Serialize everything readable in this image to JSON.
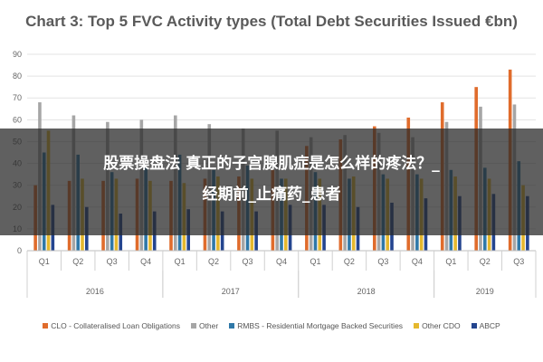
{
  "chart_data": {
    "type": "bar",
    "title": "Chart 3: Top 5 FVC Activity types (Total Debt Securities Issued €bn)",
    "ylim": [
      0,
      90
    ],
    "yticks": [
      0,
      10,
      20,
      30,
      40,
      50,
      60,
      70,
      80,
      90
    ],
    "grid": true,
    "legend_position": "bottom",
    "categories": [
      "Q1",
      "Q2",
      "Q3",
      "Q4",
      "Q1",
      "Q2",
      "Q3",
      "Q4",
      "Q1",
      "Q2",
      "Q3",
      "Q4",
      "Q1",
      "Q2",
      "Q3"
    ],
    "year_groups": [
      {
        "label": "2016",
        "count": 4
      },
      {
        "label": "2017",
        "count": 4
      },
      {
        "label": "2018",
        "count": 4
      },
      {
        "label": "2019",
        "count": 3
      }
    ],
    "series": [
      {
        "name": "CLO - Collateralised Loan Obligations",
        "color": "#e06c2c",
        "values": [
          30,
          32,
          32,
          33,
          32,
          33,
          34,
          37,
          48,
          51,
          57,
          61,
          68,
          75,
          83
        ]
      },
      {
        "name": "Other",
        "color": "#a6a6a6",
        "values": [
          68,
          62,
          59,
          60,
          62,
          58,
          56,
          55,
          52,
          53,
          54,
          52,
          59,
          66,
          67
        ]
      },
      {
        "name": "RMBS - Residential Mortgage Backed Securities",
        "color": "#2f78a8",
        "values": [
          45,
          44,
          36,
          38,
          44,
          37,
          39,
          33,
          36,
          33,
          35,
          35,
          37,
          38,
          41
        ]
      },
      {
        "name": "Other CDO",
        "color": "#e5b82e",
        "values": [
          55,
          33,
          33,
          32,
          31,
          34,
          33,
          33,
          33,
          34,
          33,
          33,
          34,
          33,
          30
        ]
      },
      {
        "name": "ABCP",
        "color": "#24458f",
        "values": [
          21,
          20,
          17,
          18,
          19,
          18,
          18,
          21,
          21,
          20,
          22,
          24,
          25,
          26,
          25
        ]
      }
    ]
  },
  "overlay": {
    "line1": "股票操盘法 真正的子宫腺肌症是怎么样的疼法？_",
    "line2": "经期前_止痛药_患者"
  }
}
